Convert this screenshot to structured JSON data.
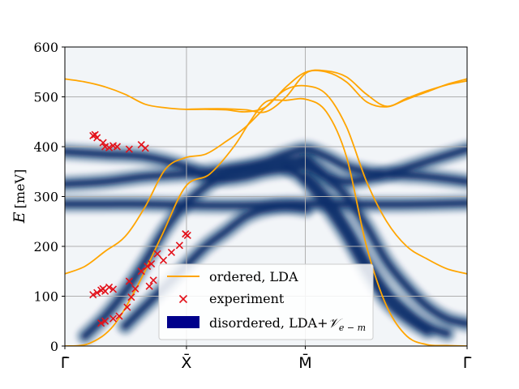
{
  "colors": {
    "band_line": "#ffa500",
    "experiment_marker": "#e3111a",
    "spectral_dark": "#08306b",
    "spectral_bg": "#f2f5f8",
    "legend_patch": "#00008b",
    "grid": "#b0b0b0"
  },
  "chart_data": {
    "type": "line",
    "title": "",
    "ylabel": "E [meV]",
    "ylabel_var": "E",
    "ylabel_unit": "[meV]",
    "xlabel": "",
    "ylim": [
      0,
      600
    ],
    "xlim": [
      0,
      1
    ],
    "y_ticks": [
      0,
      100,
      200,
      300,
      400,
      500,
      600
    ],
    "x_ticks": [
      {
        "pos": 0.0,
        "label": "Γ̄"
      },
      {
        "pos": 0.3023,
        "label": "X̄"
      },
      {
        "pos": 0.5977,
        "label": "M̄"
      },
      {
        "pos": 1.0,
        "label": "Γ̄"
      }
    ],
    "grid": true,
    "legend_position": "lower-center",
    "legend": [
      {
        "label": "ordered, LDA",
        "kind": "line"
      },
      {
        "label": "experiment",
        "kind": "marker"
      },
      {
        "label": "disordered, LDA+",
        "math": "𝒱",
        "sub": "e − m",
        "kind": "patch"
      }
    ],
    "series": [
      {
        "name": "ordered, LDA",
        "style": "line",
        "branches": [
          {
            "x": [
              0,
              0.06,
              0.12,
              0.18,
              0.24,
              0.3,
              0.36,
              0.42,
              0.46,
              0.5,
              0.55,
              0.6,
              0.65,
              0.7,
              0.75,
              0.8,
              0.85,
              0.9,
              0.95,
              1
            ],
            "y": [
              0,
              5,
              40,
              120,
              220,
              320,
              345,
              400,
              450,
              490,
              493,
              495,
              470,
              380,
              200,
              80,
              20,
              3,
              1,
              0
            ]
          },
          {
            "x": [
              0,
              0.05,
              0.1,
              0.15,
              0.2,
              0.25,
              0.3,
              0.35,
              0.4,
              0.45,
              0.5,
              0.55,
              0.6,
              0.65,
              0.7,
              0.75,
              0.8,
              0.85,
              0.9,
              0.95,
              1
            ],
            "y": [
              145,
              160,
              190,
              220,
              280,
              355,
              378,
              385,
              410,
              440,
              480,
              515,
              522,
              505,
              440,
              330,
              250,
              200,
              175,
              155,
              145
            ]
          },
          {
            "x": [
              0,
              0.05,
              0.1,
              0.15,
              0.2,
              0.25,
              0.3,
              0.35,
              0.4,
              0.45,
              0.5,
              0.55,
              0.6,
              0.65,
              0.7,
              0.75,
              0.8,
              0.85,
              0.9,
              0.95,
              1
            ],
            "y": [
              536,
              530,
              520,
              505,
              485,
              478,
              475,
              475,
              474,
              470,
              480,
              520,
              550,
              550,
              530,
              490,
              480,
              495,
              510,
              525,
              536
            ]
          },
          {
            "x": [
              0.3,
              0.35,
              0.4,
              0.45,
              0.5,
              0.55,
              0.6,
              0.65,
              0.7,
              0.75,
              0.8,
              0.85,
              0.9,
              0.95,
              1
            ],
            "y": [
              475,
              476,
              476,
              474,
              470,
              500,
              548,
              552,
              540,
              505,
              481,
              497,
              512,
              524,
              532
            ]
          }
        ]
      },
      {
        "name": "experiment",
        "style": "marker",
        "x": [
          0.07,
          0.08,
          0.075,
          0.095,
          0.1,
          0.11,
          0.12,
          0.13,
          0.16,
          0.19,
          0.2,
          0.07,
          0.08,
          0.09,
          0.095,
          0.1,
          0.11,
          0.12,
          0.16,
          0.21,
          0.22,
          0.23,
          0.09,
          0.1,
          0.12,
          0.135,
          0.155,
          0.165,
          0.175,
          0.19,
          0.205,
          0.215,
          0.245,
          0.265,
          0.285,
          0.3,
          0.305
        ],
        "y": [
          422,
          418,
          424,
          408,
          400,
          398,
          402,
          400,
          395,
          404,
          397,
          103,
          107,
          112,
          115,
          110,
          118,
          114,
          130,
          120,
          132,
          185,
          46,
          50,
          55,
          60,
          78,
          98,
          115,
          150,
          160,
          165,
          172,
          188,
          202,
          225,
          222
        ]
      },
      {
        "name": "disordered, LDA+V_e-m",
        "style": "heatmap",
        "bands": [
          {
            "x": [
              0,
              0.1,
              0.2,
              0.3,
              0.35,
              0.4,
              0.45,
              0.5,
              0.55,
              0.6,
              0.65,
              0.7,
              0.75,
              0.8,
              0.9,
              1
            ],
            "y": [
              390,
              385,
              380,
              360,
              340,
              335,
              340,
              350,
              355,
              360,
              340,
              330,
              335,
              345,
              370,
              395
            ]
          },
          {
            "x": [
              0,
              0.1,
              0.2,
              0.3,
              0.35,
              0.4,
              0.45,
              0.5,
              0.55,
              0.6,
              0.65,
              0.7,
              0.75,
              0.8,
              0.9,
              1
            ],
            "y": [
              325,
              330,
              340,
              345,
              350,
              355,
              360,
              370,
              385,
              395,
              380,
              360,
              350,
              345,
              340,
              330
            ]
          },
          {
            "x": [
              0,
              0.1,
              0.2,
              0.3,
              0.4,
              0.5,
              0.6,
              0.7,
              0.8,
              0.9,
              1
            ],
            "y": [
              285,
              285,
              285,
              283,
              282,
              283,
              285,
              285,
              284,
              285,
              287
            ]
          },
          {
            "x": [
              0.05,
              0.1,
              0.15,
              0.2,
              0.25,
              0.3,
              0.35,
              0.4,
              0.45,
              0.5,
              0.55,
              0.6
            ],
            "y": [
              20,
              60,
              110,
              170,
              235,
              285,
              320,
              345,
              355,
              360,
              370,
              375
            ]
          },
          {
            "x": [
              0.15,
              0.2,
              0.25,
              0.3,
              0.35,
              0.4,
              0.45,
              0.5,
              0.55,
              0.6
            ],
            "y": [
              40,
              80,
              120,
              160,
              200,
              230,
              260,
              275,
              280,
              275
            ]
          },
          {
            "x": [
              0.6,
              0.65,
              0.7,
              0.75,
              0.8,
              0.85,
              0.9,
              0.95,
              1
            ],
            "y": [
              375,
              340,
              300,
              240,
              170,
              120,
              80,
              55,
              45
            ]
          },
          {
            "x": [
              0.6,
              0.65,
              0.7,
              0.75,
              0.8,
              0.85,
              0.9,
              0.95
            ],
            "y": [
              340,
              300,
              240,
              170,
              110,
              70,
              40,
              25
            ]
          },
          {
            "x": [
              0.55,
              0.6,
              0.65,
              0.7,
              0.75,
              0.8,
              0.85,
              0.9
            ],
            "y": [
              360,
              330,
              280,
              220,
              150,
              90,
              55,
              30
            ]
          }
        ]
      }
    ]
  }
}
